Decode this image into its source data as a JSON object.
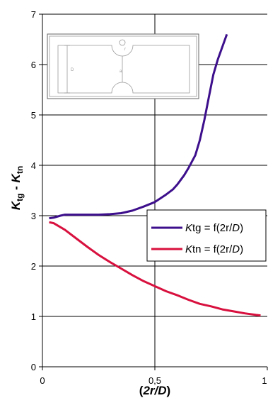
{
  "chart_data": {
    "type": "line",
    "xlabel": {
      "prefix": "(",
      "bold_italic": "2r",
      "sep": "/",
      "italic": "D",
      "suffix": ")"
    },
    "ylabel": {
      "a": "K",
      "a_sub": "tg",
      "sep": " - ",
      "b": "K",
      "b_sub": "tn"
    },
    "xlim": [
      0,
      1
    ],
    "ylim": [
      0,
      7
    ],
    "x_ticks": [
      {
        "value": 0,
        "label": "0"
      },
      {
        "value": 0.5,
        "label": "0,5"
      },
      {
        "value": 1,
        "label": "1"
      }
    ],
    "y_ticks": [
      {
        "value": 0,
        "label": "0"
      },
      {
        "value": 1,
        "label": "1"
      },
      {
        "value": 2,
        "label": "2"
      },
      {
        "value": 3,
        "label": "3"
      },
      {
        "value": 4,
        "label": "4"
      },
      {
        "value": 5,
        "label": "5"
      },
      {
        "value": 6,
        "label": "6"
      },
      {
        "value": 7,
        "label": "7"
      }
    ],
    "grid": "horizontal major lines",
    "legend_position": "right-middle",
    "series": [
      {
        "name": "Ktg = f(2r/D)",
        "legend": {
          "italic": "K",
          "text": "tg = f(2r/",
          "italic2": "D",
          "end": ")"
        },
        "color": "#3d0f8c",
        "x": [
          0.03,
          0.05,
          0.08,
          0.1,
          0.15,
          0.2,
          0.25,
          0.3,
          0.35,
          0.4,
          0.45,
          0.5,
          0.55,
          0.58,
          0.6,
          0.63,
          0.65,
          0.68,
          0.7,
          0.72,
          0.74,
          0.76,
          0.78,
          0.8,
          0.82
        ],
        "y": [
          2.95,
          2.96,
          3.0,
          3.02,
          3.02,
          3.02,
          3.02,
          3.03,
          3.05,
          3.1,
          3.18,
          3.27,
          3.42,
          3.52,
          3.62,
          3.8,
          3.95,
          4.2,
          4.5,
          4.9,
          5.35,
          5.8,
          6.1,
          6.35,
          6.6
        ]
      },
      {
        "name": "Ktn = f(2r/D)",
        "legend": {
          "italic": "K",
          "text": "tn = f(2r/",
          "italic2": "D",
          "end": ")"
        },
        "color": "#d8103e",
        "x": [
          0.03,
          0.05,
          0.1,
          0.15,
          0.2,
          0.25,
          0.3,
          0.35,
          0.4,
          0.45,
          0.5,
          0.55,
          0.6,
          0.65,
          0.7,
          0.75,
          0.8,
          0.85,
          0.9,
          0.95,
          0.97
        ],
        "y": [
          2.87,
          2.85,
          2.72,
          2.55,
          2.38,
          2.22,
          2.08,
          1.95,
          1.82,
          1.7,
          1.6,
          1.5,
          1.42,
          1.33,
          1.25,
          1.2,
          1.14,
          1.1,
          1.06,
          1.03,
          1.02
        ]
      }
    ]
  },
  "inset": {
    "label_y": "D",
    "label_r": "r",
    "label_a": "a"
  }
}
